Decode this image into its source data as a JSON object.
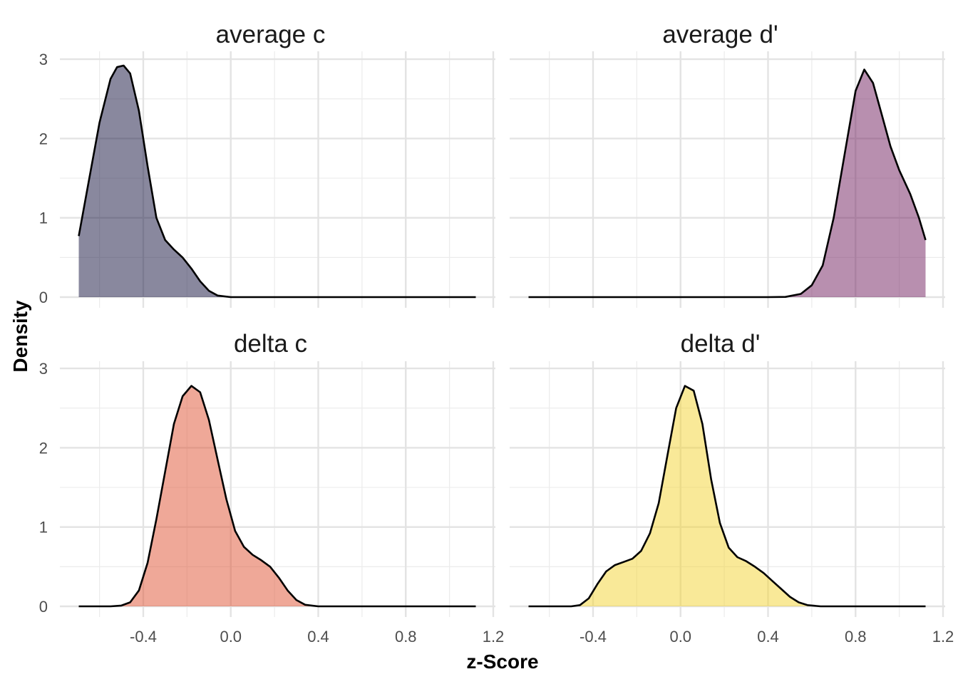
{
  "chart_data": {
    "type": "area",
    "xlabel": "z-Score",
    "ylabel": "Density",
    "xlim": [
      -0.7,
      1.2
    ],
    "ylim": [
      0,
      3
    ],
    "x_ticks": [
      -0.4,
      0.0,
      0.4,
      0.8,
      1.2
    ],
    "x_tick_labels": [
      "-0.4",
      "0.0",
      "0.4",
      "0.8",
      "1.2"
    ],
    "y_ticks": [
      0,
      1,
      2,
      3
    ],
    "y_tick_labels": [
      "0",
      "1",
      "2",
      "3"
    ],
    "grid": true,
    "legend": "none",
    "panels": [
      {
        "title": "average c",
        "color": "#14123d",
        "points": [
          [
            -0.695,
            0.77
          ],
          [
            -0.65,
            1.45
          ],
          [
            -0.6,
            2.2
          ],
          [
            -0.55,
            2.75
          ],
          [
            -0.52,
            2.9
          ],
          [
            -0.49,
            2.92
          ],
          [
            -0.46,
            2.82
          ],
          [
            -0.42,
            2.35
          ],
          [
            -0.38,
            1.65
          ],
          [
            -0.34,
            1.0
          ],
          [
            -0.3,
            0.72
          ],
          [
            -0.26,
            0.6
          ],
          [
            -0.22,
            0.5
          ],
          [
            -0.18,
            0.36
          ],
          [
            -0.14,
            0.2
          ],
          [
            -0.1,
            0.08
          ],
          [
            -0.06,
            0.02
          ],
          [
            0.0,
            0.0
          ],
          [
            1.12,
            0.0
          ]
        ]
      },
      {
        "title": "average d'",
        "color": "#721f5f",
        "points": [
          [
            -0.695,
            0.0
          ],
          [
            0.4,
            0.0
          ],
          [
            0.48,
            0.003
          ],
          [
            0.55,
            0.04
          ],
          [
            0.6,
            0.15
          ],
          [
            0.65,
            0.4
          ],
          [
            0.7,
            1.0
          ],
          [
            0.75,
            1.8
          ],
          [
            0.8,
            2.6
          ],
          [
            0.84,
            2.87
          ],
          [
            0.88,
            2.7
          ],
          [
            0.92,
            2.3
          ],
          [
            0.96,
            1.9
          ],
          [
            1.0,
            1.6
          ],
          [
            1.05,
            1.3
          ],
          [
            1.09,
            1.0
          ],
          [
            1.12,
            0.72
          ]
        ]
      },
      {
        "title": "delta c",
        "color": "#e05131",
        "points": [
          [
            -0.695,
            0.0
          ],
          [
            -0.55,
            0.0
          ],
          [
            -0.5,
            0.01
          ],
          [
            -0.46,
            0.05
          ],
          [
            -0.42,
            0.2
          ],
          [
            -0.38,
            0.55
          ],
          [
            -0.34,
            1.1
          ],
          [
            -0.3,
            1.7
          ],
          [
            -0.26,
            2.3
          ],
          [
            -0.22,
            2.65
          ],
          [
            -0.18,
            2.78
          ],
          [
            -0.14,
            2.7
          ],
          [
            -0.1,
            2.35
          ],
          [
            -0.06,
            1.85
          ],
          [
            -0.02,
            1.35
          ],
          [
            0.02,
            0.95
          ],
          [
            0.06,
            0.75
          ],
          [
            0.1,
            0.65
          ],
          [
            0.14,
            0.58
          ],
          [
            0.18,
            0.5
          ],
          [
            0.22,
            0.36
          ],
          [
            0.26,
            0.2
          ],
          [
            0.3,
            0.08
          ],
          [
            0.34,
            0.02
          ],
          [
            0.4,
            0.0
          ],
          [
            1.12,
            0.0
          ]
        ]
      },
      {
        "title": "delta d'",
        "color": "#f3d331",
        "points": [
          [
            -0.695,
            0.0
          ],
          [
            -0.5,
            0.0
          ],
          [
            -0.46,
            0.015
          ],
          [
            -0.42,
            0.1
          ],
          [
            -0.38,
            0.28
          ],
          [
            -0.34,
            0.44
          ],
          [
            -0.3,
            0.52
          ],
          [
            -0.26,
            0.56
          ],
          [
            -0.22,
            0.6
          ],
          [
            -0.18,
            0.7
          ],
          [
            -0.14,
            0.92
          ],
          [
            -0.1,
            1.3
          ],
          [
            -0.06,
            1.9
          ],
          [
            -0.02,
            2.5
          ],
          [
            0.02,
            2.78
          ],
          [
            0.06,
            2.72
          ],
          [
            0.1,
            2.3
          ],
          [
            0.14,
            1.6
          ],
          [
            0.18,
            1.05
          ],
          [
            0.22,
            0.74
          ],
          [
            0.26,
            0.62
          ],
          [
            0.3,
            0.57
          ],
          [
            0.34,
            0.5
          ],
          [
            0.38,
            0.42
          ],
          [
            0.42,
            0.32
          ],
          [
            0.46,
            0.22
          ],
          [
            0.5,
            0.12
          ],
          [
            0.54,
            0.05
          ],
          [
            0.58,
            0.015
          ],
          [
            0.64,
            0.0
          ],
          [
            1.12,
            0.0
          ]
        ]
      }
    ]
  }
}
